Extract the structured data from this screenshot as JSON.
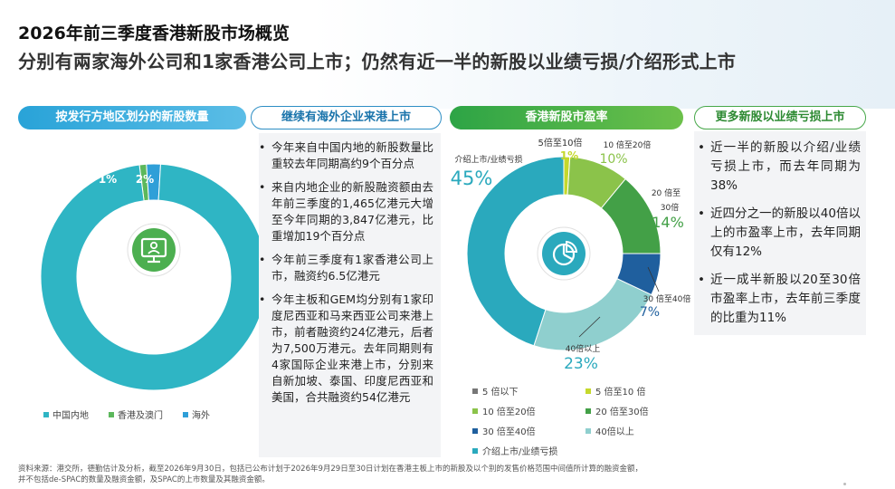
{
  "header": {
    "title": "2026年前三季度香港新股市场概览",
    "subtitle": "分别有兩家海外公司和1家香港公司上市；仍然有近一半的新股以业绩亏损/介绍形式上市"
  },
  "sections": {
    "by_region": "按发行方地区划分的新股数量",
    "overseas": "继续有海外企业来港上市",
    "pe": "香港新股市盈率",
    "loss": "更多新股以业绩亏损上市"
  },
  "overseas_bullets": [
    "今年来自中国内地的新股数量比重较去年同期高约9个百分点",
    "来自内地企业的新股融资额由去年前三季度的1,465亿港元大增至今年同期的3,847亿港元，比重增加19个百分点",
    "今年前三季度有1家香港公司上市，融资约6.5亿港元",
    "今年主板和GEM均分别有1家印度尼西亚和马来西亚公司来港上市，前者融资约24亿港元，后者为7,500万港元。去年同期则有4家国际企业来港上市，分别来自新加坡、泰国、印度尼西亚和美国，合共融资约54亿港元"
  ],
  "loss_bullets": [
    "近一半的新股以介绍/业绩亏损上市，而去年同期为38%",
    "近四分之一的新股以40倍以上的市盈率上市，去年同期仅有12%",
    "近一成半新股以20至30倍市盈率上市，去年前三季度的比重为11%"
  ],
  "region_legend": [
    "中国内地",
    "香港及澳门",
    "海外"
  ],
  "pe_legend": [
    "5 倍以下",
    "5 倍至10 倍",
    "10 倍至20倍",
    "20 倍至30倍",
    "30 倍至40倍",
    "40倍以上",
    "介绍上市/业绩亏损"
  ],
  "pe_labels": {
    "s1_name": "5倍至10倍",
    "s2_name": "10 倍至20倍",
    "s3_name_a": "20 倍至",
    "s3_name_b": "30倍",
    "s4_name": "30 倍至40倍",
    "s5_name": "40倍以上",
    "s6_name": "介绍上市/业绩亏损"
  },
  "footnote": {
    "line1": "资料来源：港交所，德勤估计及分析，截至2026年9月30日，包括已公布计划于2026年9月29日至30日计划在香港主板上市的新股及以个别的发售价格范围中间值所计算的融资金额，",
    "line2": "并不包括de-SPAC的数量及融资金额，及SPAC的上市数量及其融资金额。"
  },
  "colors": {
    "region": [
      "#2fb5c4",
      "#5cb85c",
      "#2f9fd8"
    ],
    "pe": [
      "#777777",
      "#c5d82c",
      "#8bc34a",
      "#43a047",
      "#1f5f9e",
      "#8fcfce",
      "#2aa9bd"
    ]
  },
  "icons": {
    "left_center": "monitor-user-icon",
    "right_center": "pie-chart-icon"
  },
  "chart_data": [
    {
      "type": "pie",
      "title": "按发行方地区划分的新股数量",
      "categories": [
        "中国内地",
        "香港及澳门",
        "海外"
      ],
      "values": [
        97,
        1,
        2
      ],
      "labels": [
        "97%",
        "1%",
        "2%"
      ]
    },
    {
      "type": "pie",
      "title": "香港新股市盈率",
      "categories": [
        "5 倍以下",
        "5 倍至10 倍",
        "10 倍至20倍",
        "20 倍至30倍",
        "30 倍至40倍",
        "40倍以上",
        "介绍上市/业绩亏损"
      ],
      "values": [
        0,
        1,
        10,
        14,
        7,
        23,
        45
      ],
      "labels": [
        "",
        "1%",
        "10%",
        "14%",
        "7%",
        "23%",
        "45%"
      ]
    }
  ]
}
